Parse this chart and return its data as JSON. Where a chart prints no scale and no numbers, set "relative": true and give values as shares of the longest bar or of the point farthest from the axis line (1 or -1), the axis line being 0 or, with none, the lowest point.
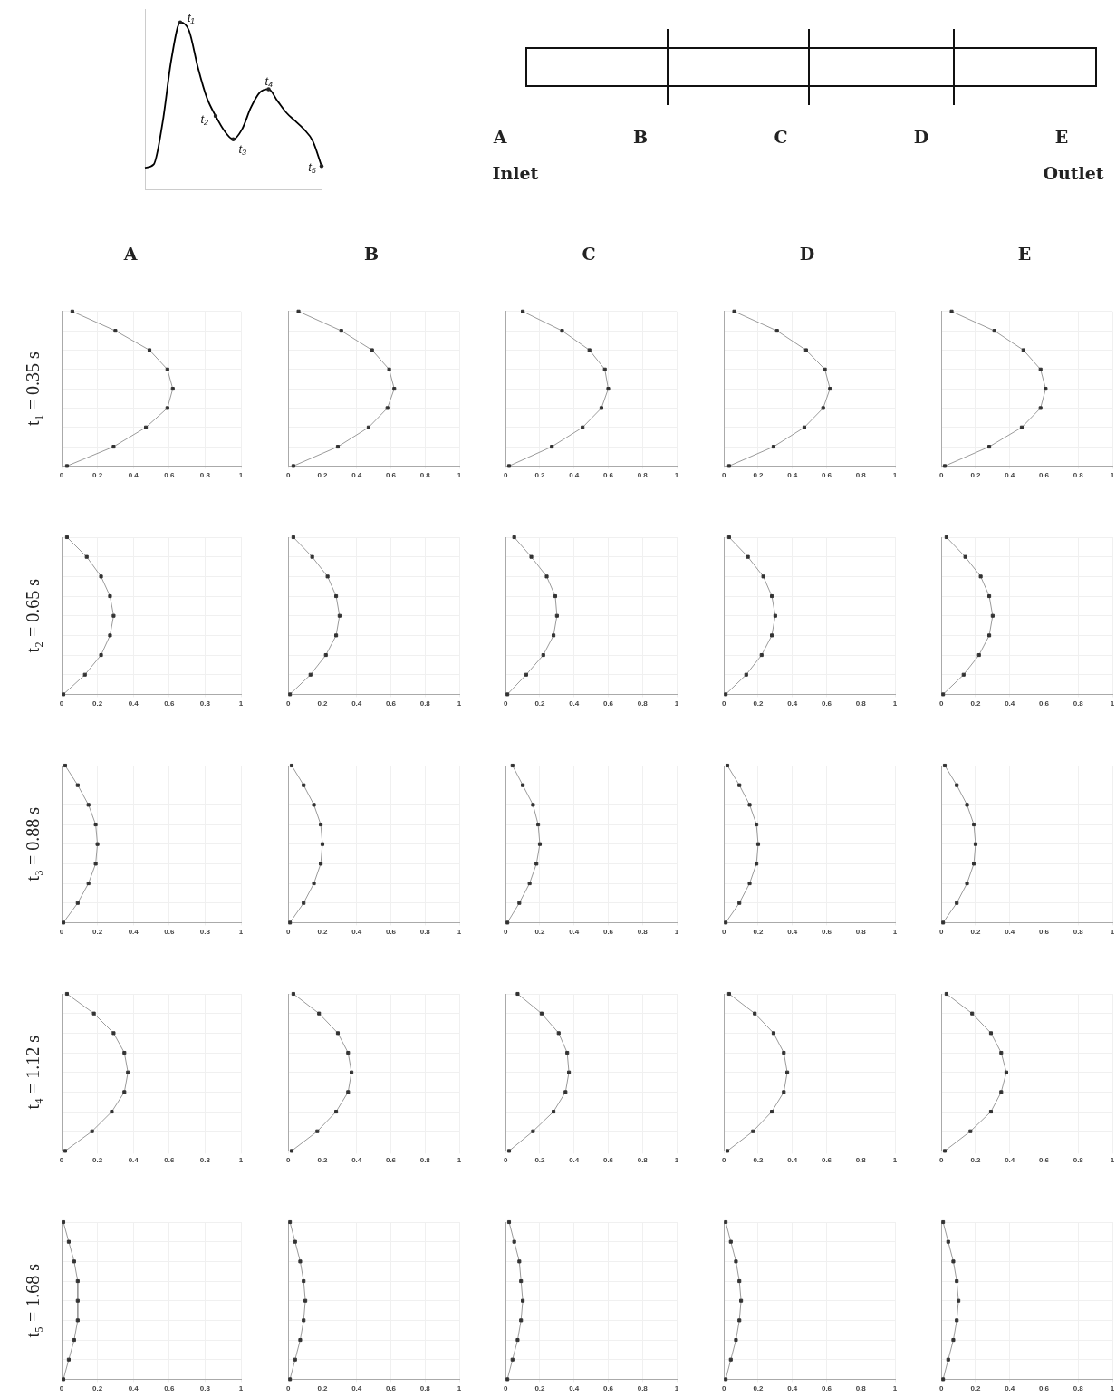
{
  "chart_data": [
    {
      "type": "line",
      "relative": true,
      "tick_labels": false,
      "color": "#000000",
      "categories": [
        null,
        null,
        null,
        null,
        null,
        null,
        null,
        null,
        null,
        null,
        null,
        null,
        null,
        null,
        null,
        null,
        null,
        null,
        null,
        null,
        null
      ],
      "values": [
        0.13,
        0.15,
        0.4,
        0.78,
        1.0,
        0.95,
        0.73,
        0.55,
        0.44,
        0.35,
        0.3,
        0.36,
        0.49,
        0.58,
        0.6,
        0.53,
        0.46,
        0.41,
        0.36,
        0.29,
        0.14
      ],
      "annotations": [
        "t₁",
        "t₂",
        "t₃",
        "t₄",
        "t₅"
      ]
    },
    {
      "type": "other",
      "annotations": [
        "A",
        "B",
        "C",
        "D",
        "E",
        "Inlet",
        "Outlet"
      ]
    },
    {
      "type": "line",
      "orientation": "horizontal",
      "title": "A",
      "ylabel": "t₁ = 0.35 s",
      "categories": [
        null,
        null,
        null,
        null,
        null,
        null,
        null,
        null,
        null
      ],
      "values": [
        0.06,
        0.3,
        0.49,
        0.59,
        0.62,
        0.59,
        0.47,
        0.29,
        0.03
      ],
      "color": "#333333",
      "marker": "square",
      "xlim": [
        0,
        1
      ],
      "xticks": [
        0,
        0.2,
        0.4,
        0.6,
        0.8,
        1
      ],
      "grid": true,
      "tick_labels": "x"
    },
    {
      "type": "line",
      "orientation": "horizontal",
      "title": "B",
      "categories": [
        null,
        null,
        null,
        null,
        null,
        null,
        null,
        null,
        null
      ],
      "values": [
        0.06,
        0.31,
        0.49,
        0.59,
        0.62,
        0.58,
        0.47,
        0.29,
        0.03
      ],
      "color": "#333333",
      "marker": "square",
      "xlim": [
        0,
        1
      ],
      "xticks": [
        0,
        0.2,
        0.4,
        0.6,
        0.8,
        1
      ],
      "grid": true,
      "tick_labels": "x"
    },
    {
      "type": "line",
      "orientation": "horizontal",
      "title": "C",
      "categories": [
        null,
        null,
        null,
        null,
        null,
        null,
        null,
        null,
        null
      ],
      "values": [
        0.1,
        0.33,
        0.49,
        0.58,
        0.6,
        0.56,
        0.45,
        0.27,
        0.02
      ],
      "color": "#333333",
      "marker": "square",
      "xlim": [
        0,
        1
      ],
      "xticks": [
        0,
        0.2,
        0.4,
        0.6,
        0.8,
        1
      ],
      "grid": true,
      "tick_labels": "x"
    },
    {
      "type": "line",
      "orientation": "horizontal",
      "title": "D",
      "categories": [
        null,
        null,
        null,
        null,
        null,
        null,
        null,
        null,
        null
      ],
      "values": [
        0.06,
        0.31,
        0.48,
        0.59,
        0.62,
        0.58,
        0.47,
        0.29,
        0.03
      ],
      "color": "#333333",
      "marker": "square",
      "xlim": [
        0,
        1
      ],
      "xticks": [
        0,
        0.2,
        0.4,
        0.6,
        0.8,
        1
      ],
      "grid": true,
      "tick_labels": "x"
    },
    {
      "type": "line",
      "orientation": "horizontal",
      "title": "E",
      "categories": [
        null,
        null,
        null,
        null,
        null,
        null,
        null,
        null,
        null
      ],
      "values": [
        0.06,
        0.31,
        0.48,
        0.58,
        0.61,
        0.58,
        0.47,
        0.28,
        0.02
      ],
      "color": "#333333",
      "marker": "square",
      "xlim": [
        0,
        1
      ],
      "xticks": [
        0,
        0.2,
        0.4,
        0.6,
        0.8,
        1
      ],
      "grid": true,
      "tick_labels": "x"
    },
    {
      "type": "line",
      "orientation": "horizontal",
      "ylabel": "t₂ = 0.65 s",
      "categories": [
        null,
        null,
        null,
        null,
        null,
        null,
        null,
        null,
        null
      ],
      "values": [
        0.03,
        0.14,
        0.22,
        0.27,
        0.29,
        0.27,
        0.22,
        0.13,
        0.01
      ],
      "color": "#333333",
      "marker": "square",
      "xlim": [
        0,
        1
      ],
      "xticks": [
        0,
        0.2,
        0.4,
        0.6,
        0.8,
        1
      ],
      "grid": true,
      "tick_labels": "x"
    },
    {
      "type": "line",
      "orientation": "horizontal",
      "categories": [
        null,
        null,
        null,
        null,
        null,
        null,
        null,
        null,
        null
      ],
      "values": [
        0.03,
        0.14,
        0.23,
        0.28,
        0.3,
        0.28,
        0.22,
        0.13,
        0.01
      ],
      "color": "#333333",
      "marker": "square",
      "xlim": [
        0,
        1
      ],
      "xticks": [
        0,
        0.2,
        0.4,
        0.6,
        0.8,
        1
      ],
      "grid": true,
      "tick_labels": "x"
    },
    {
      "type": "line",
      "orientation": "horizontal",
      "categories": [
        null,
        null,
        null,
        null,
        null,
        null,
        null,
        null,
        null
      ],
      "values": [
        0.05,
        0.15,
        0.24,
        0.29,
        0.3,
        0.28,
        0.22,
        0.12,
        0.01
      ],
      "color": "#333333",
      "marker": "square",
      "xlim": [
        0,
        1
      ],
      "xticks": [
        0,
        0.2,
        0.4,
        0.6,
        0.8,
        1
      ],
      "grid": true,
      "tick_labels": "x"
    },
    {
      "type": "line",
      "orientation": "horizontal",
      "categories": [
        null,
        null,
        null,
        null,
        null,
        null,
        null,
        null,
        null
      ],
      "values": [
        0.03,
        0.14,
        0.23,
        0.28,
        0.3,
        0.28,
        0.22,
        0.13,
        0.01
      ],
      "color": "#333333",
      "marker": "square",
      "xlim": [
        0,
        1
      ],
      "xticks": [
        0,
        0.2,
        0.4,
        0.6,
        0.8,
        1
      ],
      "grid": true,
      "tick_labels": "x"
    },
    {
      "type": "line",
      "orientation": "horizontal",
      "categories": [
        null,
        null,
        null,
        null,
        null,
        null,
        null,
        null,
        null
      ],
      "values": [
        0.03,
        0.14,
        0.23,
        0.28,
        0.3,
        0.28,
        0.22,
        0.13,
        0.01
      ],
      "color": "#333333",
      "marker": "square",
      "xlim": [
        0,
        1
      ],
      "xticks": [
        0,
        0.2,
        0.4,
        0.6,
        0.8,
        1
      ],
      "grid": true,
      "tick_labels": "x"
    },
    {
      "type": "line",
      "orientation": "horizontal",
      "ylabel": "t₃ = 0.88 s",
      "categories": [
        null,
        null,
        null,
        null,
        null,
        null,
        null,
        null,
        null
      ],
      "values": [
        0.02,
        0.09,
        0.15,
        0.19,
        0.2,
        0.19,
        0.15,
        0.09,
        0.01
      ],
      "color": "#333333",
      "marker": "square",
      "xlim": [
        0,
        1
      ],
      "xticks": [
        0,
        0.2,
        0.4,
        0.6,
        0.8,
        1
      ],
      "grid": true,
      "tick_labels": "x"
    },
    {
      "type": "line",
      "orientation": "horizontal",
      "categories": [
        null,
        null,
        null,
        null,
        null,
        null,
        null,
        null,
        null
      ],
      "values": [
        0.02,
        0.09,
        0.15,
        0.19,
        0.2,
        0.19,
        0.15,
        0.09,
        0.01
      ],
      "color": "#333333",
      "marker": "square",
      "xlim": [
        0,
        1
      ],
      "xticks": [
        0,
        0.2,
        0.4,
        0.6,
        0.8,
        1
      ],
      "grid": true,
      "tick_labels": "x"
    },
    {
      "type": "line",
      "orientation": "horizontal",
      "categories": [
        null,
        null,
        null,
        null,
        null,
        null,
        null,
        null,
        null
      ],
      "values": [
        0.04,
        0.1,
        0.16,
        0.19,
        0.2,
        0.18,
        0.14,
        0.08,
        0.01
      ],
      "color": "#333333",
      "marker": "square",
      "xlim": [
        0,
        1
      ],
      "xticks": [
        0,
        0.2,
        0.4,
        0.6,
        0.8,
        1
      ],
      "grid": true,
      "tick_labels": "x"
    },
    {
      "type": "line",
      "orientation": "horizontal",
      "categories": [
        null,
        null,
        null,
        null,
        null,
        null,
        null,
        null,
        null
      ],
      "values": [
        0.02,
        0.09,
        0.15,
        0.19,
        0.2,
        0.19,
        0.15,
        0.09,
        0.01
      ],
      "color": "#333333",
      "marker": "square",
      "xlim": [
        0,
        1
      ],
      "xticks": [
        0,
        0.2,
        0.4,
        0.6,
        0.8,
        1
      ],
      "grid": true,
      "tick_labels": "x"
    },
    {
      "type": "line",
      "orientation": "horizontal",
      "categories": [
        null,
        null,
        null,
        null,
        null,
        null,
        null,
        null,
        null
      ],
      "values": [
        0.02,
        0.09,
        0.15,
        0.19,
        0.2,
        0.19,
        0.15,
        0.09,
        0.01
      ],
      "color": "#333333",
      "marker": "square",
      "xlim": [
        0,
        1
      ],
      "xticks": [
        0,
        0.2,
        0.4,
        0.6,
        0.8,
        1
      ],
      "grid": true,
      "tick_labels": "x"
    },
    {
      "type": "line",
      "orientation": "horizontal",
      "ylabel": "t₄ = 1.12 s",
      "categories": [
        null,
        null,
        null,
        null,
        null,
        null,
        null,
        null,
        null
      ],
      "values": [
        0.03,
        0.18,
        0.29,
        0.35,
        0.37,
        0.35,
        0.28,
        0.17,
        0.02
      ],
      "color": "#333333",
      "marker": "square",
      "xlim": [
        0,
        1
      ],
      "xticks": [
        0,
        0.2,
        0.4,
        0.6,
        0.8,
        1
      ],
      "grid": true,
      "tick_labels": "x"
    },
    {
      "type": "line",
      "orientation": "horizontal",
      "categories": [
        null,
        null,
        null,
        null,
        null,
        null,
        null,
        null,
        null
      ],
      "values": [
        0.03,
        0.18,
        0.29,
        0.35,
        0.37,
        0.35,
        0.28,
        0.17,
        0.02
      ],
      "color": "#333333",
      "marker": "square",
      "xlim": [
        0,
        1
      ],
      "xticks": [
        0,
        0.2,
        0.4,
        0.6,
        0.8,
        1
      ],
      "grid": true,
      "tick_labels": "x"
    },
    {
      "type": "line",
      "orientation": "horizontal",
      "categories": [
        null,
        null,
        null,
        null,
        null,
        null,
        null,
        null,
        null
      ],
      "values": [
        0.07,
        0.21,
        0.31,
        0.36,
        0.37,
        0.35,
        0.28,
        0.16,
        0.02
      ],
      "color": "#333333",
      "marker": "square",
      "xlim": [
        0,
        1
      ],
      "xticks": [
        0,
        0.2,
        0.4,
        0.6,
        0.8,
        1
      ],
      "grid": true,
      "tick_labels": "x"
    },
    {
      "type": "line",
      "orientation": "horizontal",
      "categories": [
        null,
        null,
        null,
        null,
        null,
        null,
        null,
        null,
        null
      ],
      "values": [
        0.03,
        0.18,
        0.29,
        0.35,
        0.37,
        0.35,
        0.28,
        0.17,
        0.02
      ],
      "color": "#333333",
      "marker": "square",
      "xlim": [
        0,
        1
      ],
      "xticks": [
        0,
        0.2,
        0.4,
        0.6,
        0.8,
        1
      ],
      "grid": true,
      "tick_labels": "x"
    },
    {
      "type": "line",
      "orientation": "horizontal",
      "categories": [
        null,
        null,
        null,
        null,
        null,
        null,
        null,
        null,
        null
      ],
      "values": [
        0.03,
        0.18,
        0.29,
        0.35,
        0.38,
        0.35,
        0.29,
        0.17,
        0.02
      ],
      "color": "#333333",
      "marker": "square",
      "xlim": [
        0,
        1
      ],
      "xticks": [
        0,
        0.2,
        0.4,
        0.6,
        0.8,
        1
      ],
      "grid": true,
      "tick_labels": "x"
    },
    {
      "type": "line",
      "orientation": "horizontal",
      "ylabel": "t₅ = 1.68 s",
      "categories": [
        null,
        null,
        null,
        null,
        null,
        null,
        null,
        null,
        null
      ],
      "values": [
        0.01,
        0.04,
        0.07,
        0.09,
        0.09,
        0.09,
        0.07,
        0.04,
        0.01
      ],
      "color": "#333333",
      "marker": "square",
      "xlim": [
        0,
        1
      ],
      "xticks": [
        0,
        0.2,
        0.4,
        0.6,
        0.8,
        1
      ],
      "grid": true,
      "tick_labels": "x"
    },
    {
      "type": "line",
      "orientation": "horizontal",
      "categories": [
        null,
        null,
        null,
        null,
        null,
        null,
        null,
        null,
        null
      ],
      "values": [
        0.01,
        0.04,
        0.07,
        0.09,
        0.1,
        0.09,
        0.07,
        0.04,
        0.01
      ],
      "color": "#333333",
      "marker": "square",
      "xlim": [
        0,
        1
      ],
      "xticks": [
        0,
        0.2,
        0.4,
        0.6,
        0.8,
        1
      ],
      "grid": true,
      "tick_labels": "x"
    },
    {
      "type": "line",
      "orientation": "horizontal",
      "categories": [
        null,
        null,
        null,
        null,
        null,
        null,
        null,
        null,
        null
      ],
      "values": [
        0.02,
        0.05,
        0.08,
        0.09,
        0.1,
        0.09,
        0.07,
        0.04,
        0.01
      ],
      "color": "#333333",
      "marker": "square",
      "xlim": [
        0,
        1
      ],
      "xticks": [
        0,
        0.2,
        0.4,
        0.6,
        0.8,
        1
      ],
      "grid": true,
      "tick_labels": "x"
    },
    {
      "type": "line",
      "orientation": "horizontal",
      "categories": [
        null,
        null,
        null,
        null,
        null,
        null,
        null,
        null,
        null
      ],
      "values": [
        0.01,
        0.04,
        0.07,
        0.09,
        0.1,
        0.09,
        0.07,
        0.04,
        0.01
      ],
      "color": "#333333",
      "marker": "square",
      "xlim": [
        0,
        1
      ],
      "xticks": [
        0,
        0.2,
        0.4,
        0.6,
        0.8,
        1
      ],
      "grid": true,
      "tick_labels": "x"
    },
    {
      "type": "line",
      "orientation": "horizontal",
      "categories": [
        null,
        null,
        null,
        null,
        null,
        null,
        null,
        null,
        null
      ],
      "values": [
        0.01,
        0.04,
        0.07,
        0.09,
        0.1,
        0.09,
        0.07,
        0.04,
        0.01
      ],
      "color": "#333333",
      "marker": "square",
      "xlim": [
        0,
        1
      ],
      "xticks": [
        0,
        0.2,
        0.4,
        0.6,
        0.8,
        1
      ],
      "grid": true,
      "tick_labels": "x"
    }
  ]
}
